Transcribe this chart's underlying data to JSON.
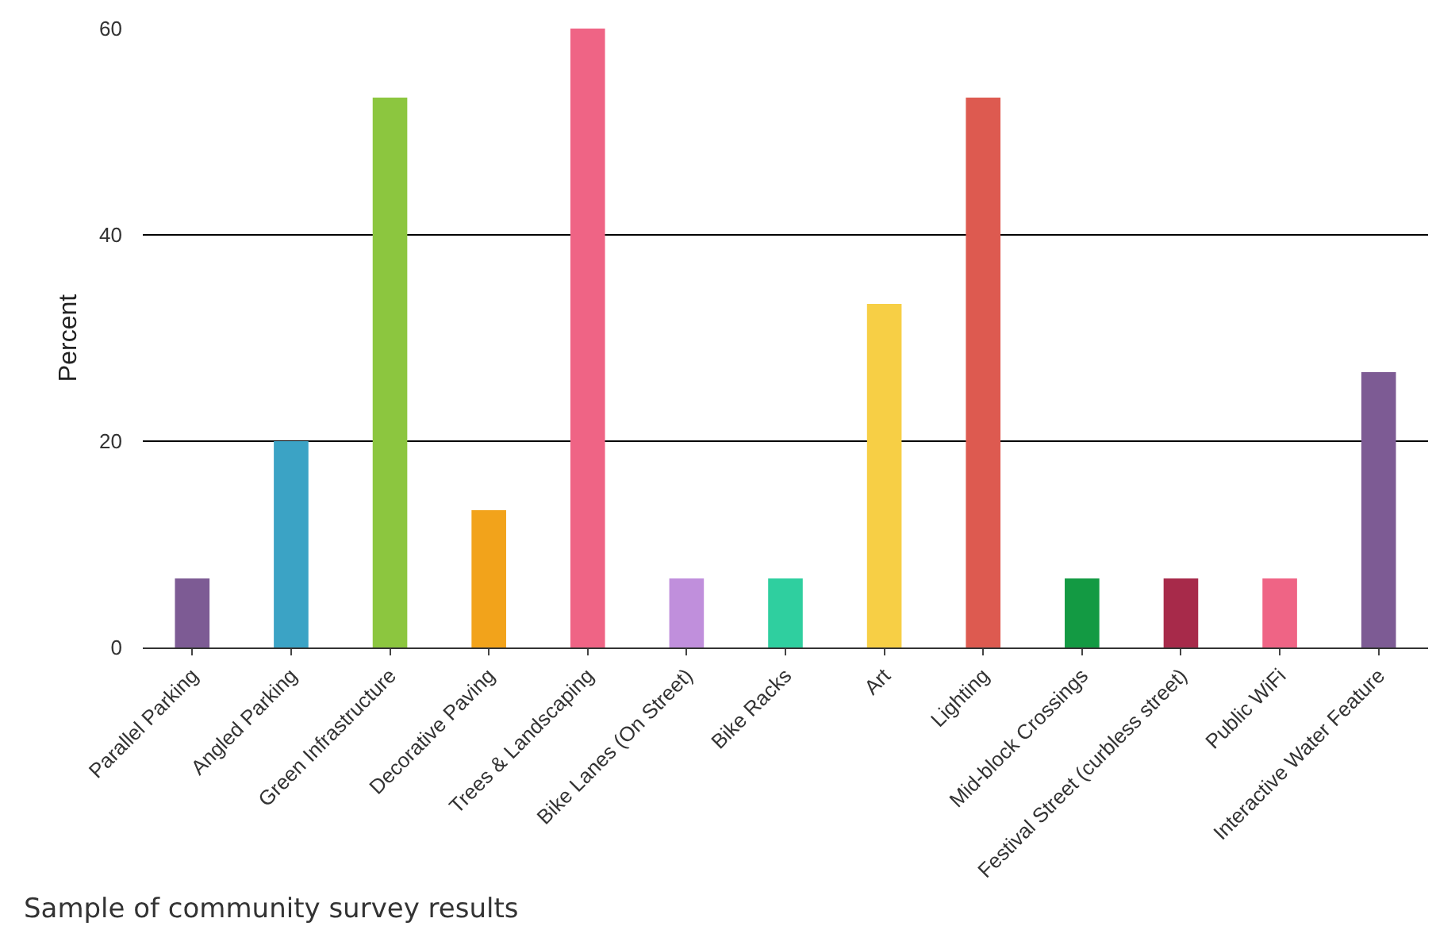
{
  "chart_data": {
    "type": "bar",
    "ylabel": "Percent",
    "categories": [
      "Parallel Parking",
      "Angled Parking",
      "Green Infrastructure",
      "Decorative Paving",
      "Trees & Landscaping",
      "Bike Lanes (On Street)",
      "Bike Racks",
      "Art",
      "Lighting",
      "Mid-block Crossings",
      "Festival Street (curbless street)",
      "Public WiFi",
      "Interactive Water Feature"
    ],
    "values": [
      6.7,
      20,
      53.3,
      13.3,
      60,
      6.7,
      6.7,
      33.3,
      53.3,
      6.7,
      6.7,
      6.7,
      26.7
    ],
    "colors": [
      "#7d5b94",
      "#3ba3c5",
      "#8cc63f",
      "#f2a31b",
      "#ef6485",
      "#c08fdc",
      "#2fcf9f",
      "#f7cf45",
      "#dd5a50",
      "#139a43",
      "#a72a4a",
      "#ef6485",
      "#7d5b94"
    ],
    "ylim": [
      0,
      60
    ],
    "yticks": [
      0,
      20,
      40,
      60
    ],
    "grid": "y",
    "legend": false,
    "annotations": [
      "Sample of community survey results"
    ]
  }
}
